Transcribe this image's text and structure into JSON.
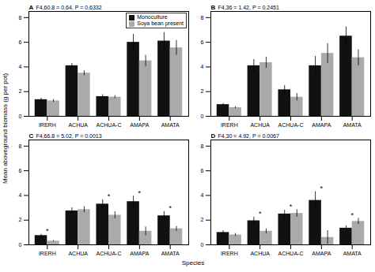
{
  "chart_data": [
    {
      "type": "bar",
      "title": "A",
      "subtitle": "F4,60.8 = 0.64, P = 0.6332",
      "categories": [
        "IRERH",
        "ACHUA",
        "ACHUA-C",
        "AMAPA",
        "AMATA"
      ],
      "series": [
        {
          "name": "Monoculture",
          "color": "#111111",
          "values": [
            1.35,
            4.1,
            1.6,
            6.0,
            6.1
          ],
          "errors": [
            0.12,
            0.18,
            0.15,
            0.65,
            0.7
          ]
        },
        {
          "name": "Soya bean present",
          "color": "#aaaaaa",
          "values": [
            1.25,
            3.5,
            1.55,
            4.5,
            5.55
          ],
          "errors": [
            0.12,
            0.2,
            0.12,
            0.45,
            0.6
          ]
        }
      ],
      "annotations": [],
      "ylim": [
        0,
        8.5
      ],
      "yticks": [
        0,
        2,
        4,
        6,
        8
      ],
      "grid": false,
      "legend": "upper right"
    },
    {
      "type": "bar",
      "title": "B",
      "subtitle": "F4,36 = 1.42, P = 0.2451",
      "categories": [
        "IRERH",
        "ACHUA",
        "ACHUA-C",
        "AMAPA",
        "AMATA"
      ],
      "series": [
        {
          "name": "Monoculture",
          "color": "#111111",
          "values": [
            0.95,
            4.1,
            2.15,
            4.1,
            6.5
          ],
          "errors": [
            0.1,
            0.5,
            0.35,
            0.75,
            0.75
          ]
        },
        {
          "name": "Soya bean present",
          "color": "#aaaaaa",
          "values": [
            0.7,
            4.35,
            1.55,
            5.1,
            4.75
          ],
          "errors": [
            0.08,
            0.45,
            0.3,
            0.8,
            0.65
          ]
        }
      ],
      "annotations": [],
      "ylim": [
        0,
        8.5
      ],
      "yticks": [
        0,
        2,
        4,
        6,
        8
      ],
      "grid": false
    },
    {
      "type": "bar",
      "title": "C",
      "subtitle": "F4,66.8 = 5.02, P = 0.0013",
      "categories": [
        "IRERH",
        "ACHUA",
        "ACHUA-C",
        "AMAPA",
        "AMATA"
      ],
      "series": [
        {
          "name": "Monoculture",
          "color": "#111111",
          "values": [
            0.75,
            2.75,
            3.3,
            3.5,
            2.35
          ],
          "errors": [
            0.1,
            0.25,
            0.35,
            0.45,
            0.35
          ]
        },
        {
          "name": "Soya bean present",
          "color": "#aaaaaa",
          "values": [
            0.3,
            2.85,
            2.4,
            1.1,
            1.3
          ],
          "errors": [
            0.05,
            0.25,
            0.28,
            0.35,
            0.2
          ]
        }
      ],
      "annotations": [
        {
          "x": "IRERH",
          "text": "*"
        },
        {
          "x": "ACHUA-C",
          "text": "*"
        },
        {
          "x": "AMAPA",
          "text": "*"
        },
        {
          "x": "AMATA",
          "text": "*"
        }
      ],
      "ylim": [
        0,
        8.5
      ],
      "yticks": [
        0,
        2,
        4,
        6,
        8
      ],
      "grid": false
    },
    {
      "type": "bar",
      "title": "D",
      "subtitle": "F4,30 = 4.92, P = 0.0067",
      "categories": [
        "IRERH",
        "ACHUA",
        "ACHUA-C",
        "AMAPA",
        "AMATA"
      ],
      "series": [
        {
          "name": "Monoculture",
          "color": "#111111",
          "values": [
            1.0,
            1.95,
            2.5,
            3.6,
            1.35
          ],
          "errors": [
            0.15,
            0.3,
            0.3,
            0.7,
            0.2
          ]
        },
        {
          "name": "Soya bean present",
          "color": "#aaaaaa",
          "values": [
            0.8,
            1.1,
            2.55,
            0.6,
            1.9
          ],
          "errors": [
            0.12,
            0.2,
            0.3,
            0.55,
            0.25
          ]
        }
      ],
      "annotations": [
        {
          "x": "ACHUA",
          "text": "*"
        },
        {
          "x": "ACHUA-C",
          "text": "*"
        },
        {
          "x": "AMAPA",
          "text": "*"
        },
        {
          "x": "AMATA",
          "text": "*"
        }
      ],
      "ylim": [
        0,
        8.5
      ],
      "yticks": [
        0,
        2,
        4,
        6,
        8
      ],
      "grid": false
    }
  ],
  "xlabel": "Species",
  "ylabel": "Mean aboveground biomass (g per pot)"
}
